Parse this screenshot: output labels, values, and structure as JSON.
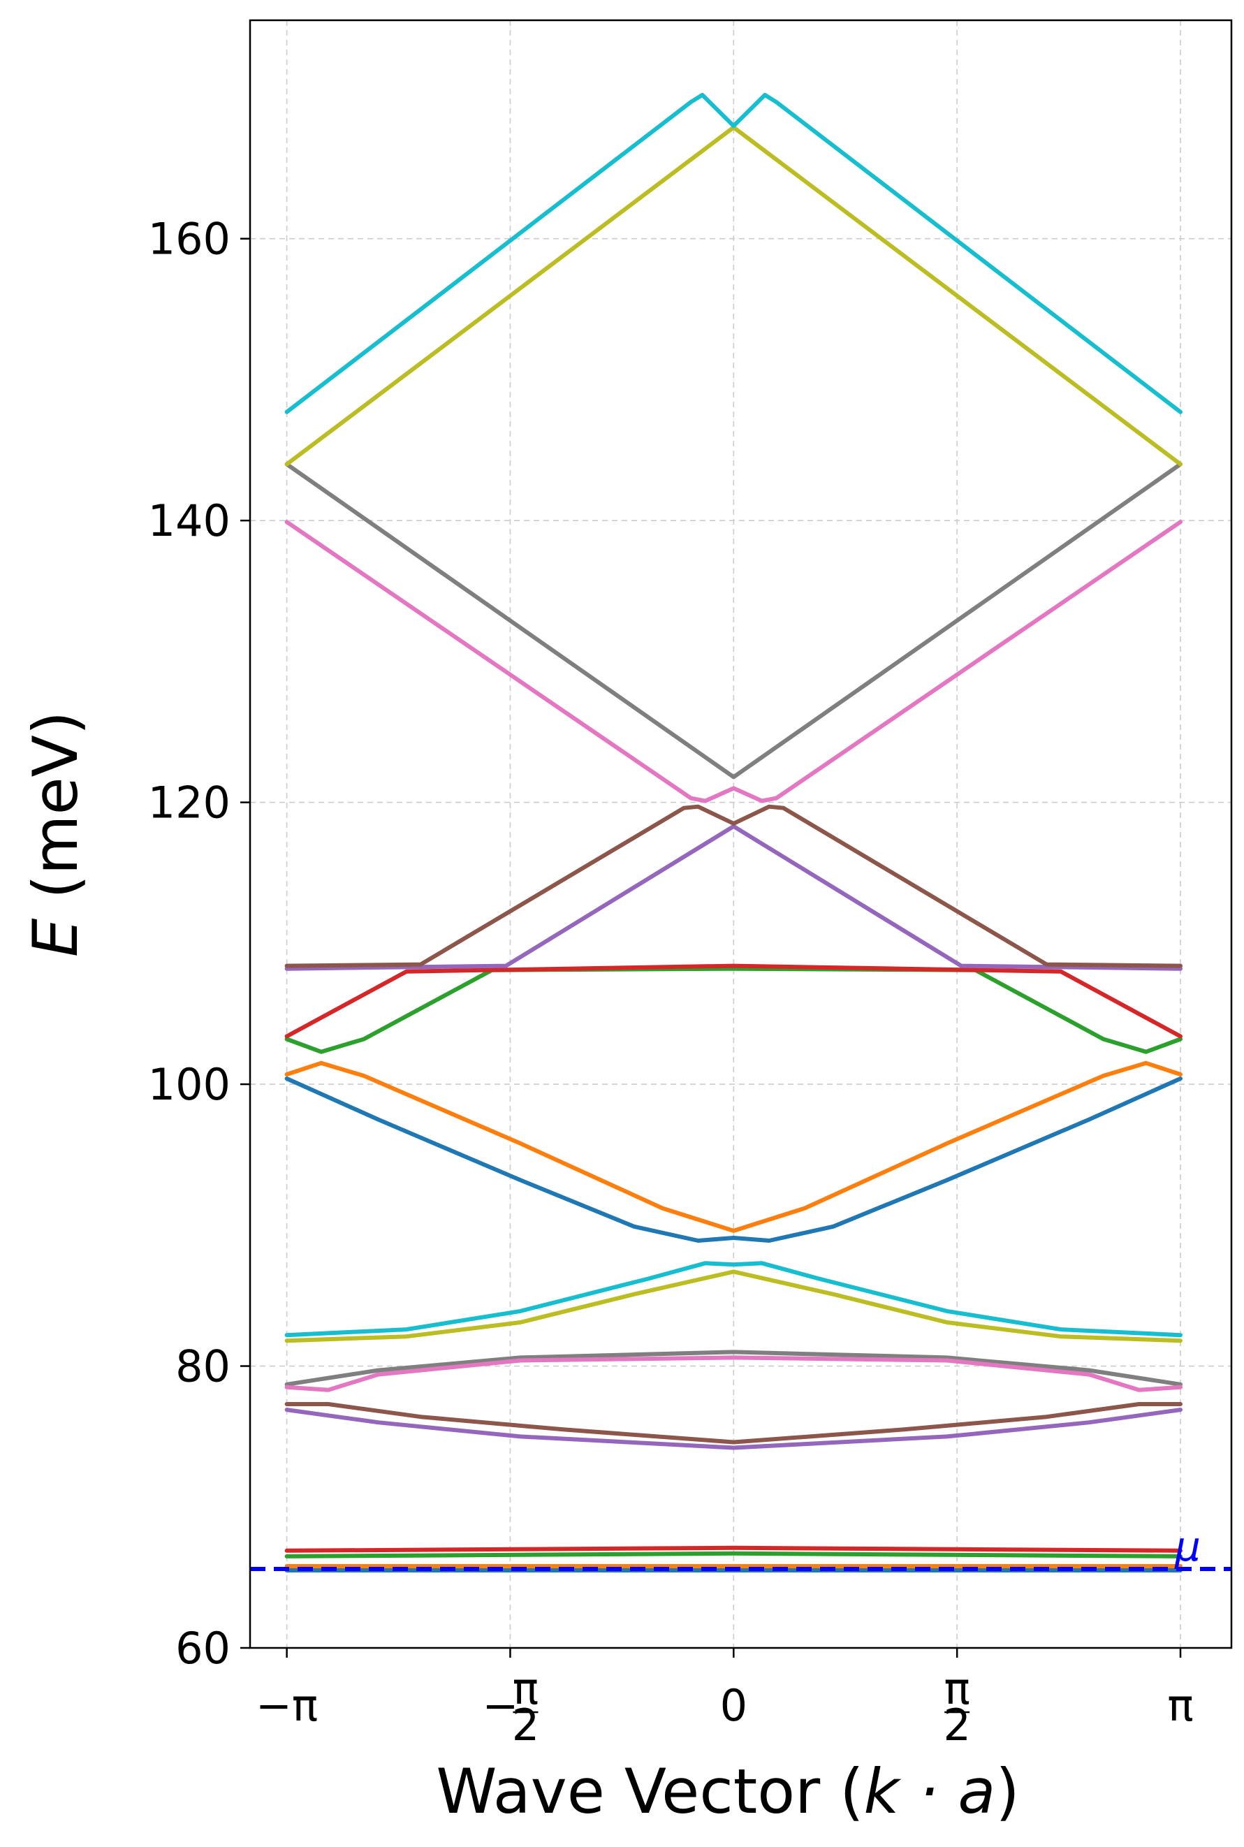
{
  "chart_data": {
    "type": "line",
    "title": "",
    "xlabel_prefix": "Wave Vector (",
    "xlabel_math": "k · a",
    "xlabel_suffix": ")",
    "ylabel_var": "E",
    "ylabel_unit": " (meV)",
    "xlim": [
      -3.4,
      3.5
    ],
    "ylim": [
      60,
      175.5
    ],
    "grid": true,
    "y_ticks": [
      60,
      80,
      100,
      120,
      140,
      160
    ],
    "x_ticks": [
      {
        "value": -3.14159,
        "label": "−π"
      },
      {
        "value": -1.5708,
        "label": "−",
        "frac": "π/2"
      },
      {
        "value": 0,
        "label": "0"
      },
      {
        "value": 1.5708,
        "label": "",
        "frac": "π/2"
      },
      {
        "value": 3.14159,
        "label": "π"
      }
    ],
    "mu": {
      "label": "μ",
      "value": 65.6,
      "color": "#0000ff"
    },
    "series": [
      {
        "color": "#1f77b4",
        "points": [
          [
            -3.1416,
            100.4
          ],
          [
            -2.5,
            97.5
          ],
          [
            -1.5,
            93.2
          ],
          [
            -0.7,
            89.9
          ],
          [
            -0.25,
            88.9
          ],
          [
            0,
            89.1
          ],
          [
            0.25,
            88.9
          ],
          [
            0.7,
            89.9
          ],
          [
            1.5,
            93.2
          ],
          [
            2.5,
            97.5
          ],
          [
            3.1416,
            100.4
          ]
        ]
      },
      {
        "color": "#ff7f0e",
        "points": [
          [
            -3.1416,
            100.7
          ],
          [
            -2.9,
            101.5
          ],
          [
            -2.6,
            100.6
          ],
          [
            -1.5,
            95.8
          ],
          [
            -0.5,
            91.2
          ],
          [
            0,
            89.6
          ],
          [
            0.5,
            91.2
          ],
          [
            1.5,
            95.8
          ],
          [
            2.6,
            100.6
          ],
          [
            2.9,
            101.5
          ],
          [
            3.1416,
            100.7
          ]
        ]
      },
      {
        "color": "#2ca02c",
        "points": [
          [
            -3.1416,
            103.2
          ],
          [
            -2.9,
            102.3
          ],
          [
            -2.6,
            103.2
          ],
          [
            -1.7,
            108.1
          ],
          [
            0,
            108.2
          ],
          [
            1.7,
            108.1
          ],
          [
            2.6,
            103.2
          ],
          [
            2.9,
            102.3
          ],
          [
            3.1416,
            103.2
          ]
        ]
      },
      {
        "color": "#d62728",
        "points": [
          [
            -3.1416,
            103.4
          ],
          [
            -2.3,
            108.0
          ],
          [
            0,
            108.4
          ],
          [
            2.3,
            108.0
          ],
          [
            3.1416,
            103.4
          ]
        ]
      },
      {
        "color": "#9467bd",
        "points": [
          [
            -3.1416,
            108.2
          ],
          [
            -1.6,
            108.4
          ],
          [
            0,
            118.3
          ],
          [
            1.6,
            108.4
          ],
          [
            3.1416,
            108.2
          ]
        ]
      },
      {
        "color": "#8c564b",
        "points": [
          [
            -3.1416,
            108.4
          ],
          [
            -2.2,
            108.5
          ],
          [
            -0.35,
            119.6
          ],
          [
            -0.25,
            119.7
          ],
          [
            0,
            118.5
          ],
          [
            0.25,
            119.7
          ],
          [
            0.35,
            119.6
          ],
          [
            2.2,
            108.5
          ],
          [
            3.1416,
            108.4
          ]
        ]
      },
      {
        "color": "#e377c2",
        "points": [
          [
            -3.1416,
            139.9
          ],
          [
            -0.3,
            120.3
          ],
          [
            -0.2,
            120.1
          ],
          [
            0,
            121.0
          ],
          [
            0.2,
            120.1
          ],
          [
            0.3,
            120.3
          ],
          [
            3.1416,
            139.9
          ]
        ]
      },
      {
        "color": "#7f7f7f",
        "points": [
          [
            -3.1416,
            144.0
          ],
          [
            0,
            121.8
          ],
          [
            3.1416,
            144.0
          ]
        ]
      },
      {
        "color": "#bcbd22",
        "points": [
          [
            -3.1416,
            144.0
          ],
          [
            0,
            167.9
          ],
          [
            3.1416,
            144.0
          ]
        ]
      },
      {
        "color": "#17becf",
        "points": [
          [
            -3.1416,
            147.7
          ],
          [
            -0.3,
            169.7
          ],
          [
            -0.22,
            170.2
          ],
          [
            0,
            168.0
          ],
          [
            0.22,
            170.2
          ],
          [
            0.3,
            169.7
          ],
          [
            3.1416,
            147.7
          ]
        ]
      },
      {
        "color": "#17becf",
        "points": [
          [
            -3.1416,
            82.2
          ],
          [
            -2.3,
            82.6
          ],
          [
            -1.5,
            83.9
          ],
          [
            -0.6,
            86.2
          ],
          [
            -0.2,
            87.3
          ],
          [
            0,
            87.2
          ],
          [
            0.2,
            87.3
          ],
          [
            0.6,
            86.2
          ],
          [
            1.5,
            83.9
          ],
          [
            2.3,
            82.6
          ],
          [
            3.1416,
            82.2
          ]
        ]
      },
      {
        "color": "#bcbd22",
        "points": [
          [
            -3.1416,
            81.8
          ],
          [
            -2.3,
            82.1
          ],
          [
            -1.5,
            83.1
          ],
          [
            -0.7,
            85.1
          ],
          [
            0,
            86.7
          ],
          [
            0.7,
            85.1
          ],
          [
            1.5,
            83.1
          ],
          [
            2.3,
            82.1
          ],
          [
            3.1416,
            81.8
          ]
        ]
      },
      {
        "color": "#7f7f7f",
        "points": [
          [
            -3.1416,
            78.7
          ],
          [
            -2.5,
            79.7
          ],
          [
            -1.5,
            80.6
          ],
          [
            0,
            81.0
          ],
          [
            1.5,
            80.6
          ],
          [
            2.5,
            79.7
          ],
          [
            3.1416,
            78.7
          ]
        ]
      },
      {
        "color": "#e377c2",
        "points": [
          [
            -3.1416,
            78.5
          ],
          [
            -2.85,
            78.3
          ],
          [
            -2.5,
            79.4
          ],
          [
            -1.5,
            80.4
          ],
          [
            0,
            80.6
          ],
          [
            1.5,
            80.4
          ],
          [
            2.5,
            79.4
          ],
          [
            2.85,
            78.3
          ],
          [
            3.1416,
            78.5
          ]
        ]
      },
      {
        "color": "#8c564b",
        "points": [
          [
            -3.1416,
            77.3
          ],
          [
            -2.85,
            77.3
          ],
          [
            -2.2,
            76.4
          ],
          [
            -1.2,
            75.5
          ],
          [
            0,
            74.6
          ],
          [
            1.2,
            75.5
          ],
          [
            2.2,
            76.4
          ],
          [
            2.85,
            77.3
          ],
          [
            3.1416,
            77.3
          ]
        ]
      },
      {
        "color": "#9467bd",
        "points": [
          [
            -3.1416,
            76.9
          ],
          [
            -2.5,
            76.0
          ],
          [
            -1.5,
            75.0
          ],
          [
            0,
            74.2
          ],
          [
            1.5,
            75.0
          ],
          [
            2.5,
            76.0
          ],
          [
            3.1416,
            76.9
          ]
        ]
      },
      {
        "color": "#d62728",
        "points": [
          [
            -3.1416,
            66.9
          ],
          [
            0,
            67.1
          ],
          [
            3.1416,
            66.9
          ]
        ]
      },
      {
        "color": "#2ca02c",
        "points": [
          [
            -3.1416,
            66.5
          ],
          [
            0,
            66.7
          ],
          [
            3.1416,
            66.5
          ]
        ]
      },
      {
        "color": "#ff7f0e",
        "points": [
          [
            -3.1416,
            65.8
          ],
          [
            0,
            65.8
          ],
          [
            3.1416,
            65.8
          ]
        ]
      },
      {
        "color": "#1f77b4",
        "points": [
          [
            -3.1416,
            65.5
          ],
          [
            0,
            65.5
          ],
          [
            3.1416,
            65.5
          ]
        ]
      }
    ]
  }
}
